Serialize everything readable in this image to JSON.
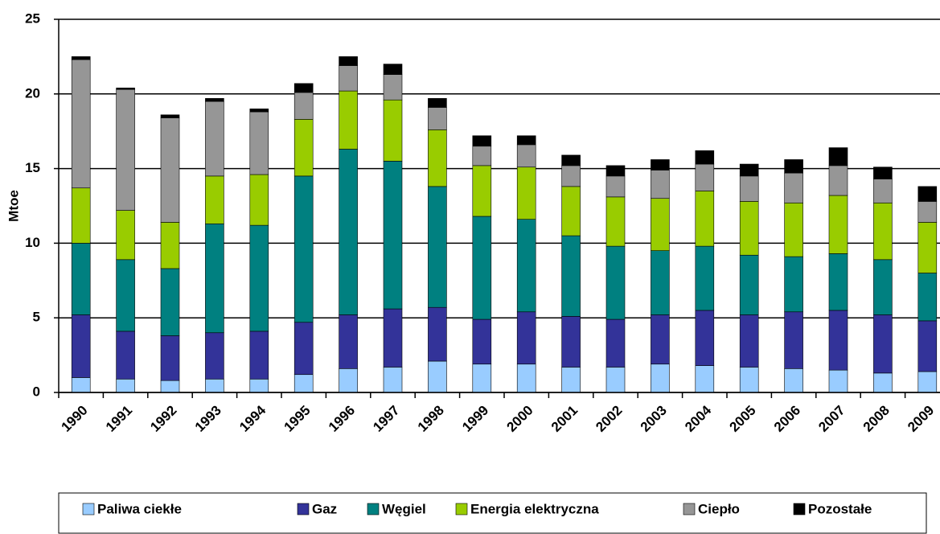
{
  "chart_data": {
    "type": "stacked-bar",
    "y_label": "Mtoe",
    "categories": [
      "1990",
      "1991",
      "1992",
      "1993",
      "1994",
      "1995",
      "1996",
      "1997",
      "1998",
      "1999",
      "2000",
      "2001",
      "2002",
      "2003",
      "2004",
      "2005",
      "2006",
      "2007",
      "2008",
      "2009"
    ],
    "series": [
      {
        "name": "Paliwa ciekłe",
        "color": "#99ccff",
        "values": [
          1.0,
          0.9,
          0.8,
          0.9,
          0.9,
          1.2,
          1.6,
          1.7,
          2.1,
          1.9,
          1.9,
          1.7,
          1.7,
          1.9,
          1.8,
          1.7,
          1.6,
          1.5,
          1.3,
          1.4
        ]
      },
      {
        "name": "Gaz",
        "color": "#333399",
        "values": [
          4.2,
          3.2,
          3.0,
          3.1,
          3.2,
          3.5,
          3.6,
          3.9,
          3.6,
          3.0,
          3.5,
          3.4,
          3.2,
          3.3,
          3.7,
          3.5,
          3.8,
          4.0,
          3.9,
          3.4
        ]
      },
      {
        "name": "Węgiel",
        "color": "#008080",
        "values": [
          4.8,
          4.8,
          4.5,
          7.3,
          7.1,
          9.8,
          11.1,
          9.9,
          8.1,
          6.9,
          6.2,
          5.4,
          4.9,
          4.3,
          4.3,
          4.0,
          3.7,
          3.8,
          3.7,
          3.2
        ]
      },
      {
        "name": "Energia elektryczna",
        "color": "#99cc00",
        "values": [
          3.7,
          3.3,
          3.1,
          3.2,
          3.4,
          3.8,
          3.9,
          4.1,
          3.8,
          3.4,
          3.5,
          3.3,
          3.3,
          3.5,
          3.7,
          3.6,
          3.6,
          3.9,
          3.8,
          3.4
        ]
      },
      {
        "name": "Ciepło",
        "color": "#969696",
        "values": [
          8.6,
          8.1,
          7.0,
          5.0,
          4.2,
          1.8,
          1.7,
          1.7,
          1.5,
          1.3,
          1.5,
          1.4,
          1.4,
          1.9,
          1.8,
          1.7,
          2.0,
          2.0,
          1.6,
          1.4
        ]
      },
      {
        "name": "Pozostałe",
        "color": "#000000",
        "values": [
          0.2,
          0.1,
          0.2,
          0.2,
          0.2,
          0.6,
          0.6,
          0.7,
          0.6,
          0.7,
          0.6,
          0.7,
          0.7,
          0.7,
          0.9,
          0.8,
          0.9,
          1.2,
          0.8,
          1.0
        ]
      }
    ],
    "ylim": [
      0,
      25
    ],
    "yticks": [
      0,
      5,
      10,
      15,
      20,
      25
    ],
    "grid": true,
    "legend": "bottom"
  }
}
